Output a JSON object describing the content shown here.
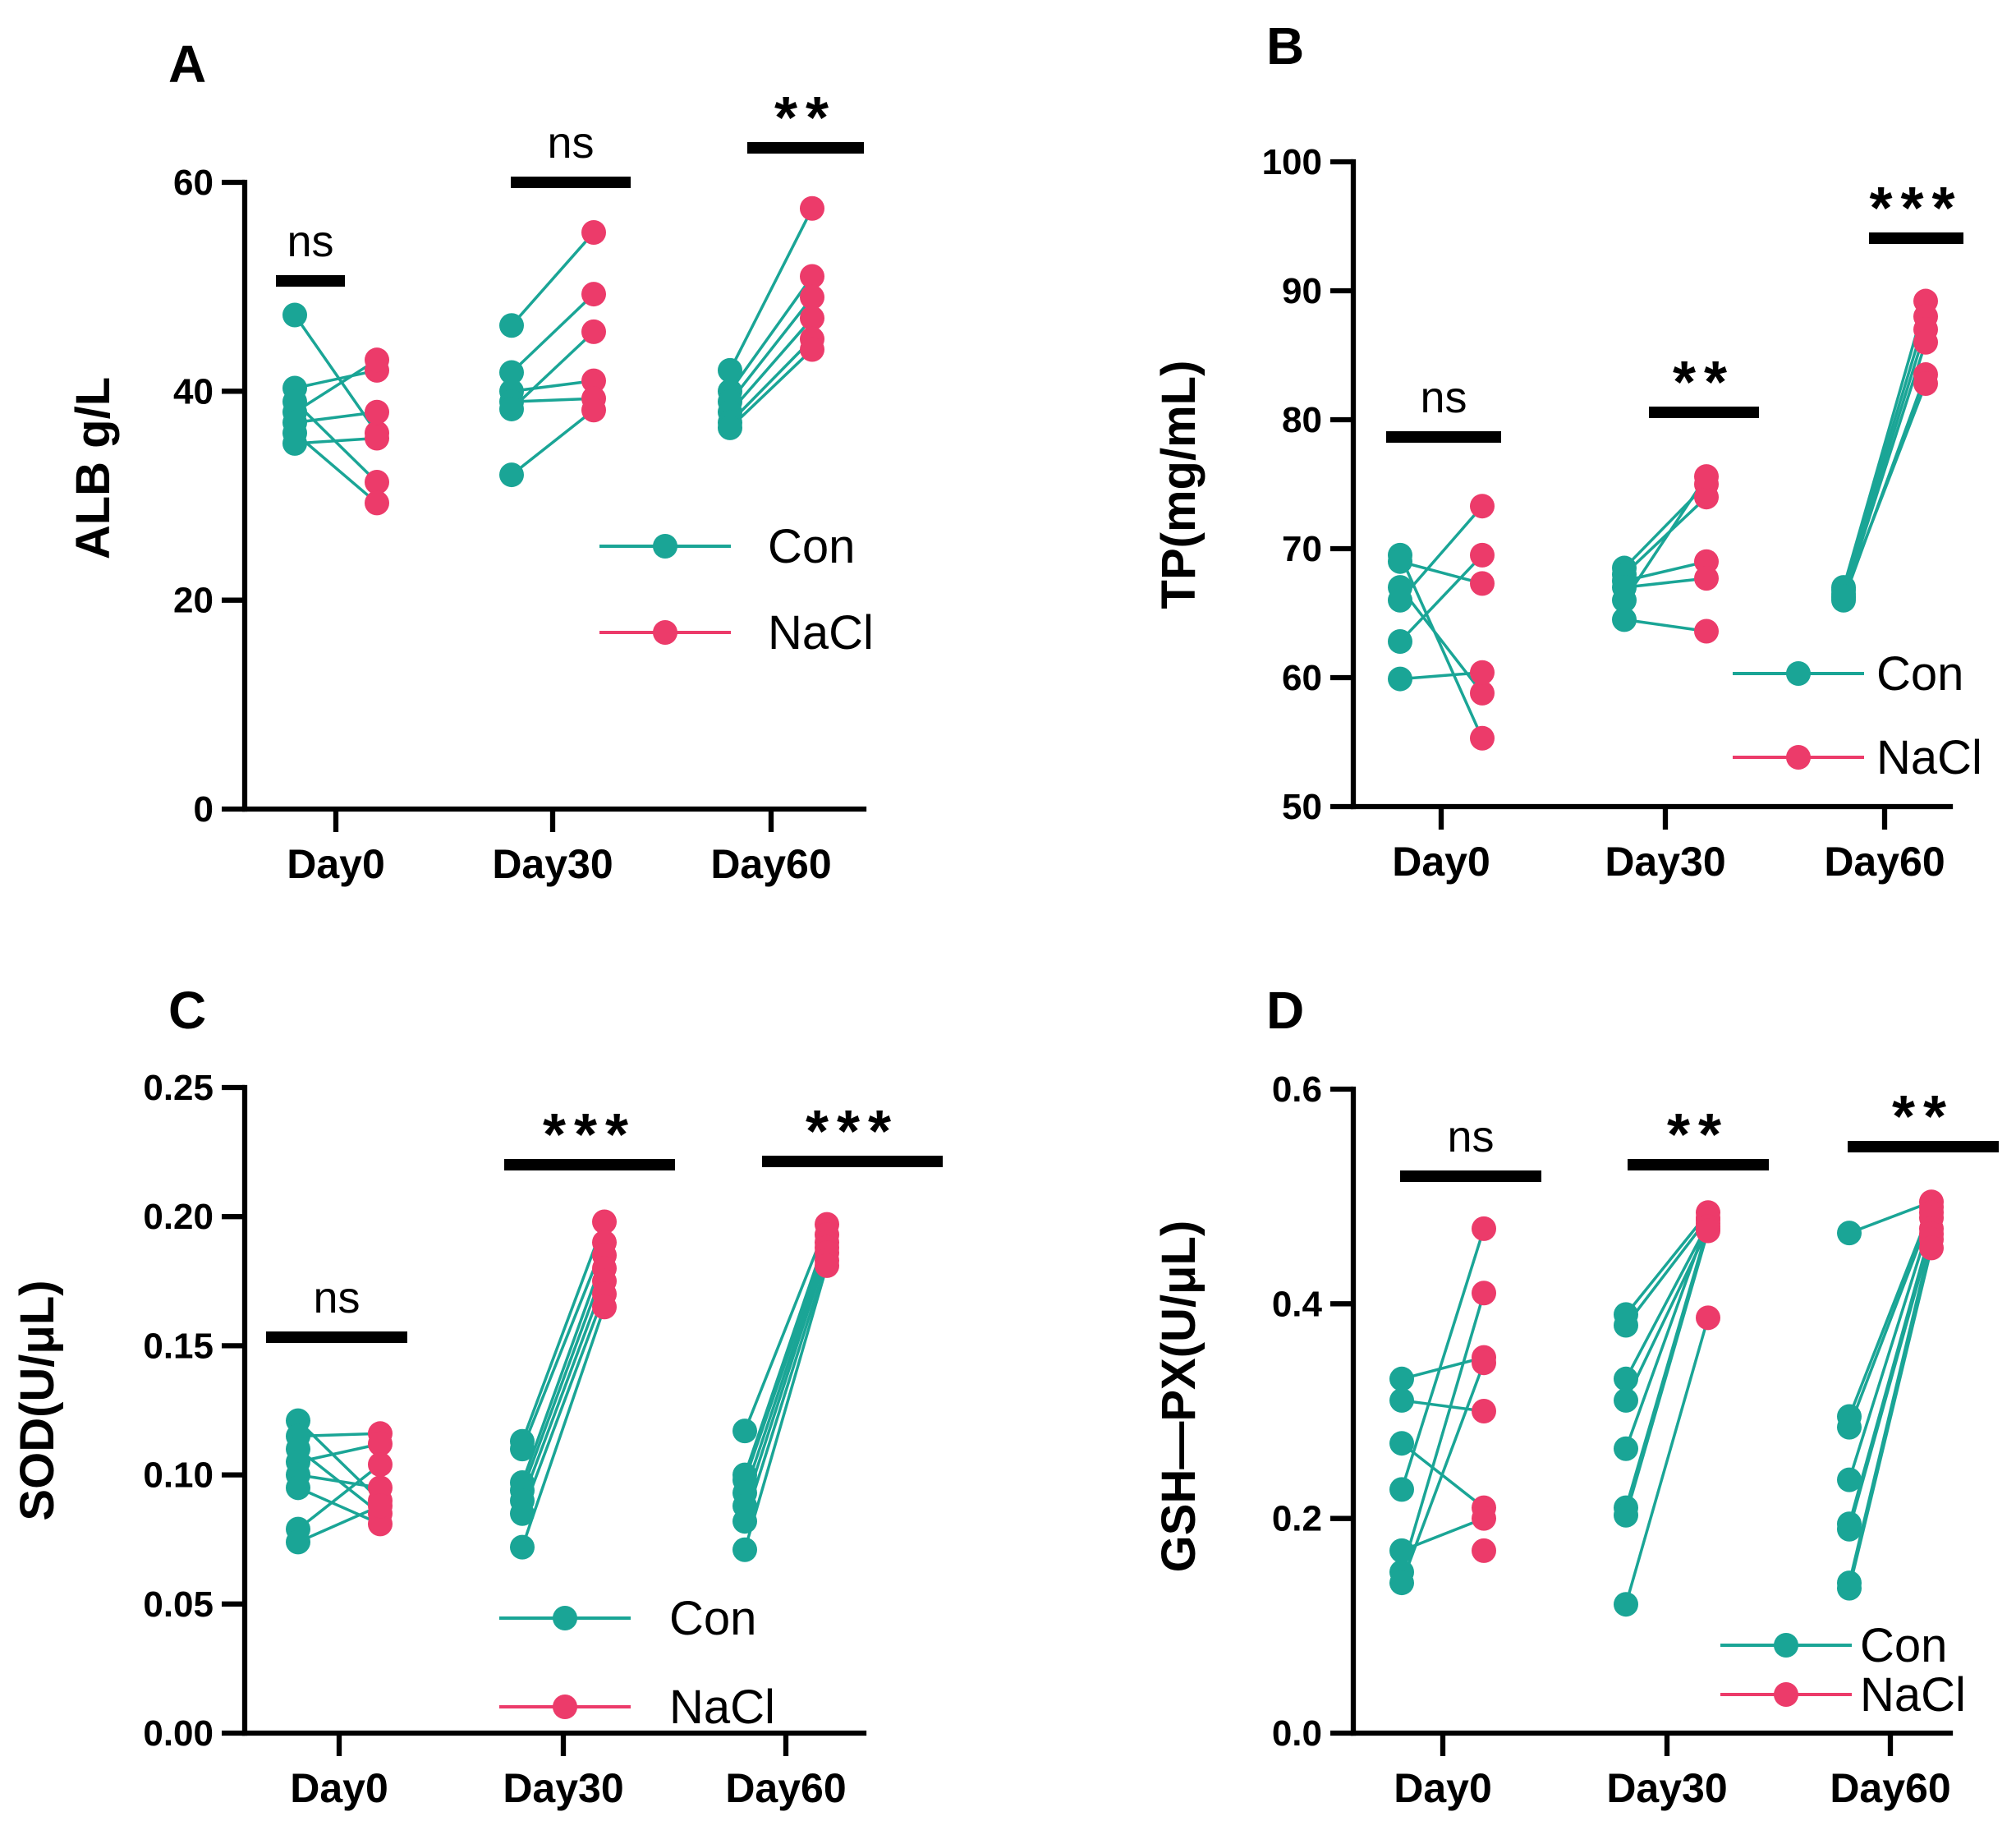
{
  "colors": {
    "con": "#1aa596",
    "nacl": "#ec3b6a",
    "axis": "#000000"
  },
  "chart_data": [
    {
      "panel": "A",
      "type": "scatter",
      "ylabel": "ALB g/L",
      "ylim": [
        0,
        60
      ],
      "yticks": [
        0,
        20,
        40,
        60
      ],
      "ytick_labels": [
        "0",
        "20",
        "40",
        "60"
      ],
      "categories": [
        "Day0",
        "Day30",
        "Day60"
      ],
      "legend": [
        "Con",
        "NaCl"
      ],
      "significance": [
        "ns",
        "ns",
        "**"
      ],
      "series": [
        {
          "name": "Con",
          "values": [
            [
              47.3,
              40.3,
              39.0,
              38.0,
              37.0,
              36.0,
              35.0
            ],
            [
              46.3,
              41.8,
              40.0,
              39.0,
              38.3,
              32.0
            ],
            [
              42.0,
              40.0,
              39.0,
              38.0,
              37.0,
              36.5
            ]
          ]
        },
        {
          "name": "NaCl",
          "values": [
            [
              36.0,
              42.0,
              31.3,
              43.0,
              38.0,
              29.3,
              35.5
            ],
            [
              55.2,
              49.3,
              41.0,
              39.3,
              45.7,
              38.2
            ],
            [
              57.5,
              51.0,
              49.0,
              47.0,
              45.0,
              44.0
            ]
          ]
        }
      ]
    },
    {
      "panel": "B",
      "type": "scatter",
      "ylabel": "TP(mg/mL)",
      "ylim": [
        50,
        100
      ],
      "yticks": [
        50,
        60,
        70,
        80,
        90,
        100
      ],
      "ytick_labels": [
        "50",
        "60",
        "70",
        "80",
        "90",
        "100"
      ],
      "categories": [
        "Day0",
        "Day30",
        "Day60"
      ],
      "legend": [
        "Con",
        "NaCl"
      ],
      "significance": [
        "ns",
        "**",
        "***"
      ],
      "series": [
        {
          "name": "Con",
          "values": [
            [
              69.5,
              69.0,
              67.0,
              66.0,
              62.8,
              59.9
            ],
            [
              68.5,
              68.0,
              67.5,
              67.0,
              66.0,
              64.5
            ],
            [
              67.0,
              66.8,
              66.5,
              66.2,
              66.0,
              66.3
            ]
          ]
        },
        {
          "name": "NaCl",
          "values": [
            [
              55.3,
              67.3,
              58.8,
              73.3,
              69.5,
              60.4
            ],
            [
              75.0,
              74.0,
              69.0,
              67.7,
              75.6,
              63.6
            ],
            [
              89.2,
              88.0,
              87.0,
              86.0,
              83.5,
              82.8
            ]
          ]
        }
      ]
    },
    {
      "panel": "C",
      "type": "scatter",
      "ylabel": "SOD(U/μL)",
      "ylim": [
        0.0,
        0.25
      ],
      "yticks": [
        0.0,
        0.05,
        0.1,
        0.15,
        0.2,
        0.25
      ],
      "ytick_labels": [
        "0.00",
        "0.05",
        "0.10",
        "0.15",
        "0.20",
        "0.25"
      ],
      "categories": [
        "Day0",
        "Day30",
        "Day60"
      ],
      "legend": [
        "Con",
        "NaCl"
      ],
      "significance": [
        "ns",
        "***",
        "***"
      ],
      "series": [
        {
          "name": "Con",
          "values": [
            [
              0.121,
              0.115,
              0.11,
              0.105,
              0.1,
              0.095,
              0.079,
              0.074
            ],
            [
              0.113,
              0.11,
              0.097,
              0.094,
              0.09,
              0.085,
              0.072
            ],
            [
              0.117,
              0.1,
              0.098,
              0.093,
              0.088,
              0.082,
              0.071
            ]
          ]
        },
        {
          "name": "NaCl",
          "values": [
            [
              0.09,
              0.116,
              0.085,
              0.112,
              0.095,
              0.081,
              0.104,
              0.088
            ],
            [
              0.198,
              0.19,
              0.185,
              0.18,
              0.175,
              0.17,
              0.165
            ],
            [
              0.197,
              0.193,
              0.19,
              0.188,
              0.186,
              0.183,
              0.181
            ]
          ]
        }
      ]
    },
    {
      "panel": "D",
      "type": "scatter",
      "ylabel": "GSH—PX(U/μL)",
      "ylim": [
        0.0,
        0.6
      ],
      "yticks": [
        0.0,
        0.2,
        0.4,
        0.6
      ],
      "ytick_labels": [
        "0.0",
        "0.2",
        "0.4",
        "0.6"
      ],
      "categories": [
        "Day0",
        "Day30",
        "Day60"
      ],
      "legend": [
        "Con",
        "NaCl"
      ],
      "significance": [
        "ns",
        "**",
        "**"
      ],
      "series": [
        {
          "name": "Con",
          "values": [
            [
              0.33,
              0.31,
              0.27,
              0.227,
              0.17,
              0.15,
              0.14
            ],
            [
              0.39,
              0.38,
              0.33,
              0.31,
              0.265,
              0.21,
              0.203,
              0.12
            ],
            [
              0.466,
              0.295,
              0.285,
              0.236,
              0.195,
              0.19,
              0.14,
              0.135
            ]
          ]
        },
        {
          "name": "NaCl",
          "values": [
            [
              0.35,
              0.3,
              0.21,
              0.47,
              0.2,
              0.41,
              0.345,
              0.17
            ],
            [
              0.485,
              0.48,
              0.475,
              0.47,
              0.478,
              0.472,
              0.468,
              0.387
            ],
            [
              0.495,
              0.49,
              0.485,
              0.48,
              0.47,
              0.465,
              0.46,
              0.452
            ]
          ]
        }
      ]
    }
  ]
}
